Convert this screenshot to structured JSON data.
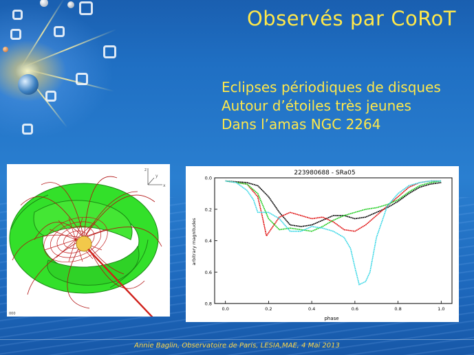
{
  "slide": {
    "title": "Observés par CoRoT",
    "bullets": [
      "Eclipses périodiques de disques",
      "Autour d’étoiles très jeunes",
      "Dans l’amas NGC 2264"
    ],
    "footer": "Annie Baglin, Observatoire de Paris, LESIA,MAE, 4 Mai 2013",
    "title_color": "#ffe84a"
  },
  "figure_left": {
    "corner_label": "000",
    "colors": {
      "disk": "#33e02a",
      "field_lines": "#b01010",
      "star": "#f2c84a",
      "jet": "#d0201a"
    }
  },
  "chart_data": {
    "type": "line",
    "title": "223980688 - SRa05",
    "xlabel": "phase",
    "ylabel": "arbitrary magnitudes",
    "xlim": [
      -0.05,
      1.05
    ],
    "ylim": [
      0.8,
      0.0
    ],
    "x_ticks": [
      "0.0",
      "0.2",
      "0.4",
      "0.6",
      "0.8",
      "1.0"
    ],
    "y_ticks": [
      "0.0",
      "0.2",
      "0.4",
      "0.6",
      "0.8"
    ],
    "grid": false,
    "series": [
      {
        "color": "#000000",
        "x": [
          0.0,
          0.1,
          0.15,
          0.2,
          0.25,
          0.3,
          0.35,
          0.4,
          0.45,
          0.5,
          0.55,
          0.6,
          0.65,
          0.7,
          0.75,
          0.8,
          0.85,
          0.9,
          0.95,
          1.0
        ],
        "y": [
          0.02,
          0.03,
          0.05,
          0.12,
          0.22,
          0.3,
          0.31,
          0.3,
          0.27,
          0.24,
          0.24,
          0.26,
          0.25,
          0.22,
          0.19,
          0.15,
          0.1,
          0.06,
          0.04,
          0.03
        ]
      },
      {
        "color": "#e01010",
        "x": [
          0.0,
          0.1,
          0.15,
          0.17,
          0.19,
          0.21,
          0.25,
          0.3,
          0.35,
          0.4,
          0.45,
          0.5,
          0.55,
          0.6,
          0.65,
          0.7,
          0.75,
          0.8,
          0.85,
          0.9,
          0.95,
          1.0
        ],
        "y": [
          0.02,
          0.04,
          0.12,
          0.24,
          0.37,
          0.33,
          0.25,
          0.22,
          0.24,
          0.26,
          0.25,
          0.28,
          0.33,
          0.34,
          0.3,
          0.24,
          0.18,
          0.12,
          0.06,
          0.03,
          0.02,
          0.02
        ]
      },
      {
        "color": "#1fcc1f",
        "x": [
          0.0,
          0.1,
          0.15,
          0.2,
          0.25,
          0.3,
          0.35,
          0.4,
          0.45,
          0.5,
          0.55,
          0.6,
          0.65,
          0.7,
          0.75,
          0.8,
          0.85,
          0.9,
          0.95,
          1.0
        ],
        "y": [
          0.02,
          0.04,
          0.1,
          0.26,
          0.33,
          0.32,
          0.33,
          0.34,
          0.31,
          0.27,
          0.24,
          0.22,
          0.2,
          0.19,
          0.17,
          0.14,
          0.09,
          0.05,
          0.03,
          0.02
        ]
      },
      {
        "color": "#3ad7e6",
        "x": [
          0.0,
          0.05,
          0.1,
          0.13,
          0.15,
          0.2,
          0.25,
          0.3,
          0.35,
          0.4,
          0.45,
          0.5,
          0.55,
          0.58,
          0.6,
          0.62,
          0.65,
          0.67,
          0.7,
          0.75,
          0.8,
          0.85,
          0.9,
          0.95,
          1.0
        ],
        "y": [
          0.02,
          0.03,
          0.08,
          0.14,
          0.22,
          0.22,
          0.26,
          0.34,
          0.34,
          0.31,
          0.32,
          0.34,
          0.38,
          0.45,
          0.57,
          0.68,
          0.66,
          0.6,
          0.38,
          0.18,
          0.1,
          0.05,
          0.03,
          0.02,
          0.02
        ]
      }
    ]
  }
}
